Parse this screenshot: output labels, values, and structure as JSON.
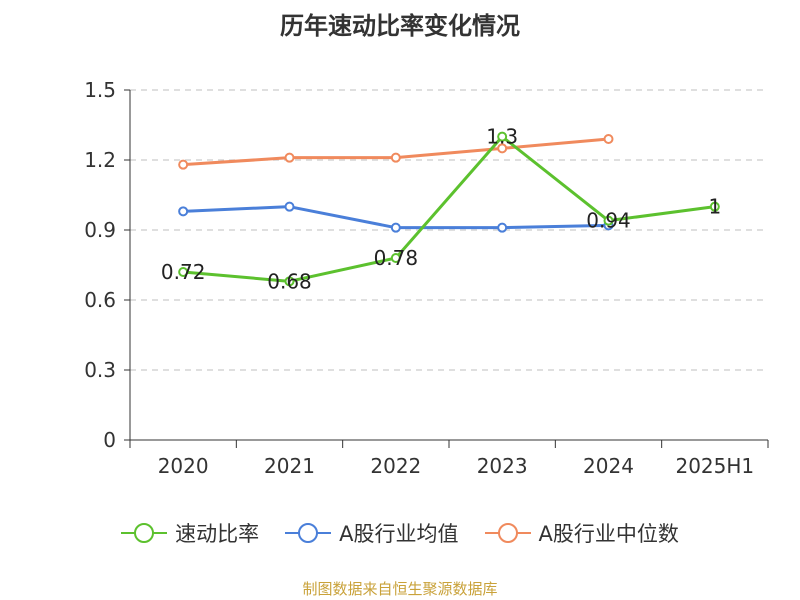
{
  "chart_data": {
    "type": "line",
    "title": "历年速动比率变化情况",
    "categories": [
      "2020",
      "2021",
      "2022",
      "2023",
      "2024",
      "2025H1"
    ],
    "ylim": [
      0,
      1.5
    ],
    "yticks": [
      "0",
      "0.3",
      "0.6",
      "0.9",
      "1.2",
      "1.5"
    ],
    "ytick_values": [
      0,
      0.3,
      0.6,
      0.9,
      1.2,
      1.5
    ],
    "grid": true,
    "legend_position": "bottom",
    "series": [
      {
        "name": "速动比率",
        "color": "#5cc12e",
        "values": [
          0.72,
          0.68,
          0.78,
          1.3,
          0.94,
          1
        ],
        "labels": [
          "0.72",
          "0.68",
          "0.78",
          "1.3",
          "0.94",
          "1"
        ]
      },
      {
        "name": "A股行业均值",
        "color": "#4a7fd9",
        "values": [
          0.98,
          1.0,
          0.91,
          0.91,
          0.92,
          null
        ]
      },
      {
        "name": "A股行业中位数",
        "color": "#f08a5d",
        "values": [
          1.18,
          1.21,
          1.21,
          1.25,
          1.29,
          null
        ]
      }
    ]
  },
  "source": "制图数据来自恒生聚源数据库"
}
